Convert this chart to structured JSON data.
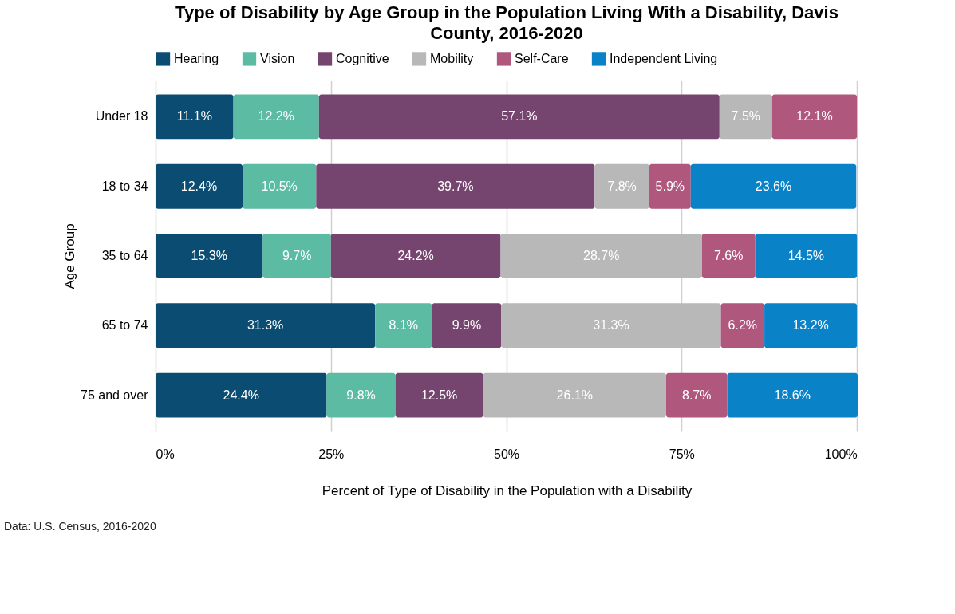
{
  "chart_data": {
    "type": "bar",
    "orientation": "horizontal",
    "stacked": true,
    "title": "Type of Disability by Age Group in the Population Living With a Disability, Davis County, 2016-2020",
    "xlabel": "Percent of Type of Disability in the Population with a Disability",
    "ylabel": "Age Group",
    "categories": [
      "Under 18",
      "18 to 34",
      "35 to 64",
      "65 to 74",
      "75 and over"
    ],
    "series": [
      {
        "name": "Hearing",
        "color": "#0b4d72",
        "values": [
          11.1,
          12.4,
          15.3,
          31.3,
          24.4
        ],
        "value_labels": [
          "11.1%",
          "12.4%",
          "15.3%",
          "31.3%",
          "24.4%"
        ]
      },
      {
        "name": "Vision",
        "color": "#5bbca3",
        "values": [
          12.2,
          10.5,
          9.7,
          8.1,
          9.8
        ],
        "value_labels": [
          "12.2%",
          "10.5%",
          "9.7%",
          "8.1%",
          "9.8%"
        ]
      },
      {
        "name": "Cognitive",
        "color": "#76456f",
        "values": [
          57.1,
          39.7,
          24.2,
          9.9,
          12.5
        ],
        "value_labels": [
          "57.1%",
          "39.7%",
          "24.2%",
          "9.9%",
          "12.5%"
        ]
      },
      {
        "name": "Mobility",
        "color": "#b8b8b8",
        "values": [
          7.5,
          7.8,
          28.7,
          31.3,
          26.1
        ],
        "value_labels": [
          "7.5%",
          "7.8%",
          "28.7%",
          "31.3%",
          "26.1%"
        ]
      },
      {
        "name": "Self-Care",
        "color": "#b0577e",
        "values": [
          12.1,
          5.9,
          7.6,
          6.2,
          8.7
        ],
        "value_labels": [
          "12.1%",
          "5.9%",
          "7.6%",
          "6.2%",
          "8.7%"
        ]
      },
      {
        "name": "Independent Living",
        "color": "#0a82c8",
        "values": [
          null,
          23.6,
          14.5,
          13.2,
          18.6
        ],
        "value_labels": [
          null,
          "23.6%",
          "14.5%",
          "13.2%",
          "18.6%"
        ]
      }
    ],
    "xlim": [
      0,
      100.1
    ],
    "xticks": [
      {
        "value": 0,
        "label": "0%"
      },
      {
        "value": 25,
        "label": "25%"
      },
      {
        "value": 50,
        "label": "50%"
      },
      {
        "value": 75,
        "label": "75%"
      },
      {
        "value": 100,
        "label": "100%"
      }
    ],
    "grid": "x",
    "legend": "top",
    "annotations": [
      "Data: U.S. Census, 2016-2020"
    ]
  }
}
